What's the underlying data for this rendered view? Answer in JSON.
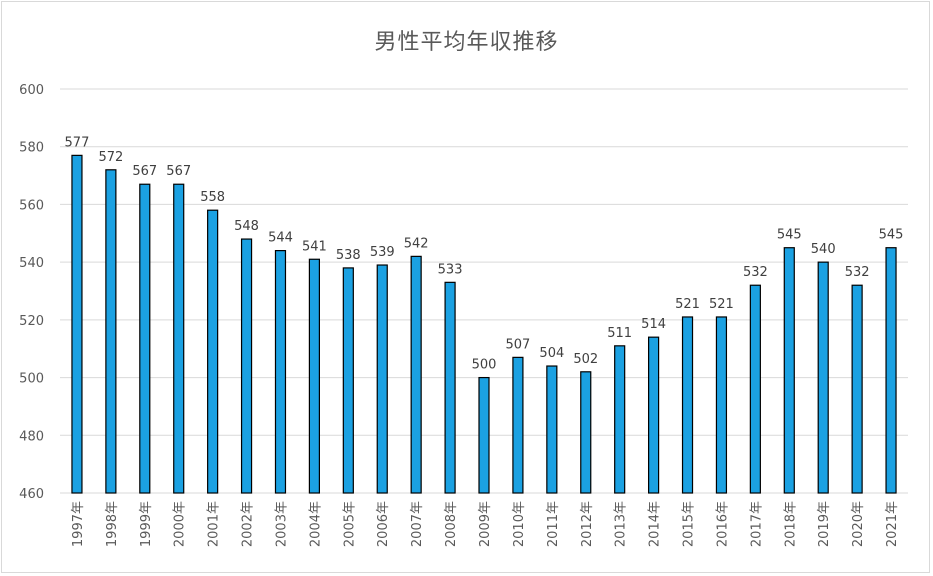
{
  "chart_data": {
    "type": "bar",
    "title": "男性平均年収推移",
    "xlabel": "",
    "ylabel": "",
    "ylim": [
      460,
      600
    ],
    "yticks": [
      460,
      480,
      500,
      520,
      540,
      560,
      580,
      600
    ],
    "grid": true,
    "legend": "none",
    "bar_color": "#1ba1e2",
    "bar_stroke": "#000000",
    "categories": [
      "1997年",
      "1998年",
      "1999年",
      "2000年",
      "2001年",
      "2002年",
      "2003年",
      "2004年",
      "2005年",
      "2006年",
      "2007年",
      "2008年",
      "2009年",
      "2010年",
      "2011年",
      "2012年",
      "2013年",
      "2014年",
      "2015年",
      "2016年",
      "2017年",
      "2018年",
      "2019年",
      "2020年",
      "2021年"
    ],
    "values": [
      577,
      572,
      567,
      567,
      558,
      548,
      544,
      541,
      538,
      539,
      542,
      533,
      500,
      507,
      504,
      502,
      511,
      514,
      521,
      521,
      532,
      545,
      540,
      532,
      545
    ]
  }
}
